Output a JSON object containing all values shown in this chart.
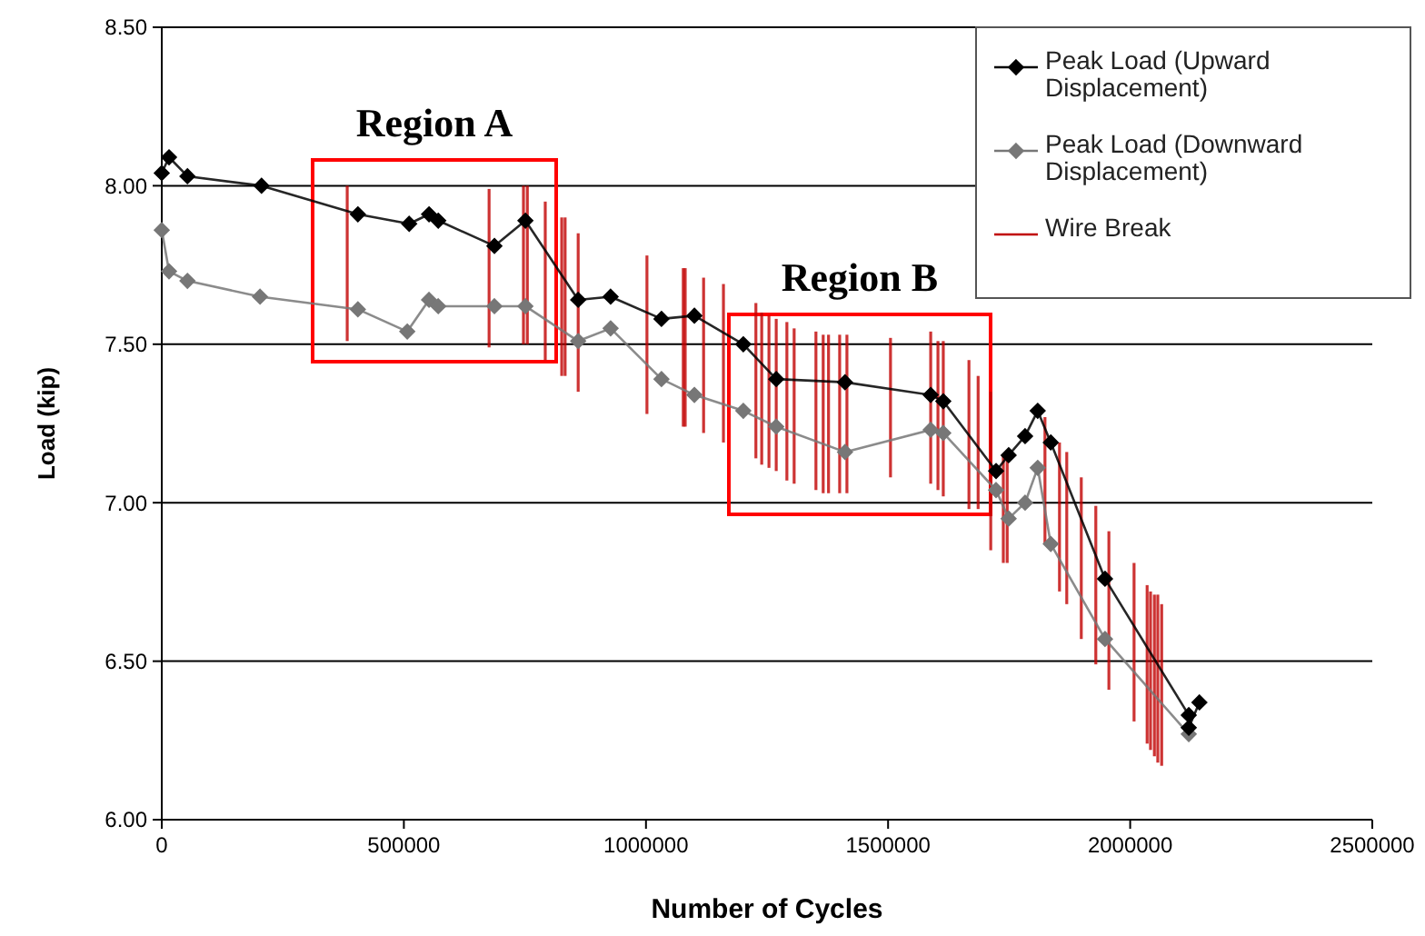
{
  "chart_data": {
    "type": "line",
    "xlabel": "Number of Cycles",
    "ylabel": "Load (kip)",
    "xlim": [
      0,
      2500000
    ],
    "xticks": [
      0,
      500000,
      1000000,
      1500000,
      2000000,
      2500000
    ],
    "ylim": [
      6,
      8.5
    ],
    "yticks": [
      {
        "value": 6,
        "label": "6.00"
      },
      {
        "value": 6.5,
        "label": "6.50"
      },
      {
        "value": 7,
        "label": "7.00"
      },
      {
        "value": 7.5,
        "label": "7.50"
      },
      {
        "value": 8,
        "label": "8.00"
      },
      {
        "value": 8.5,
        "label": "8.50"
      }
    ],
    "grid": "y",
    "legend": "top right",
    "line_style": "solid",
    "annotations": [
      "Region A",
      "Region B"
    ],
    "series": [
      {
        "name": "Peak Load (Upward Displacement)",
        "color": "#000000",
        "marker": "diamond",
        "x": [
          0,
          15000,
          53000,
          206000,
          405000,
          511000,
          552000,
          571000,
          687000,
          751000,
          860000,
          927000,
          1032000,
          1100000,
          1201000,
          1269000,
          1411000,
          1588000,
          1614000,
          1723000,
          1749000,
          1783000,
          1809000,
          1836000,
          1948000,
          2121000,
          2121000,
          2143000
        ],
        "values": [
          8.04,
          8.09,
          8.03,
          8.0,
          7.91,
          7.88,
          7.91,
          7.89,
          7.81,
          7.89,
          7.64,
          7.65,
          7.58,
          7.59,
          7.5,
          7.39,
          7.38,
          7.34,
          7.32,
          7.1,
          7.15,
          7.21,
          7.29,
          7.19,
          6.76,
          6.33,
          6.29,
          6.37
        ]
      },
      {
        "name": "Peak Load (Downward Displacement)",
        "color": "#777777",
        "marker": "diamond",
        "x": [
          0,
          15000,
          53000,
          203000,
          405000,
          507000,
          552000,
          571000,
          687000,
          751000,
          860000,
          927000,
          1032000,
          1100000,
          1201000,
          1269000,
          1411000,
          1588000,
          1614000,
          1723000,
          1749000,
          1783000,
          1809000,
          1836000,
          1948000,
          2121000
        ],
        "values": [
          7.86,
          7.73,
          7.7,
          7.65,
          7.61,
          7.54,
          7.64,
          7.62,
          7.62,
          7.62,
          7.51,
          7.55,
          7.39,
          7.34,
          7.29,
          7.24,
          7.16,
          7.23,
          7.22,
          7.04,
          6.95,
          7.0,
          7.11,
          6.87,
          6.57,
          6.27
        ]
      },
      {
        "name": "Wire Break",
        "type": "bar",
        "color": "#c00000",
        "x": [
          383000,
          676000,
          747000,
          755000,
          792000,
          826000,
          833000,
          860000,
          1002000,
          1077000,
          1081000,
          1119000,
          1160000,
          1227000,
          1239000,
          1254000,
          1269000,
          1291000,
          1306000,
          1351000,
          1366000,
          1377000,
          1400000,
          1415000,
          1505000,
          1588000,
          1603000,
          1614000,
          1667000,
          1686000,
          1712000,
          1738000,
          1746000,
          1824000,
          1854000,
          1869000,
          1899000,
          1929000,
          1956000,
          2008000,
          2035000,
          2042000,
          2050000,
          2057000,
          2065000
        ],
        "base": [
          7.51,
          7.49,
          7.5,
          7.5,
          7.45,
          7.4,
          7.4,
          7.35,
          7.28,
          7.24,
          7.24,
          7.22,
          7.19,
          7.14,
          7.12,
          7.11,
          7.1,
          7.07,
          7.06,
          7.04,
          7.03,
          7.03,
          7.03,
          7.03,
          7.08,
          7.06,
          7.04,
          7.02,
          6.98,
          6.98,
          6.85,
          6.81,
          6.81,
          6.87,
          6.72,
          6.68,
          6.57,
          6.49,
          6.41,
          6.31,
          6.24,
          6.22,
          6.2,
          6.18,
          6.17
        ],
        "values": [
          0.49,
          0.5,
          0.5,
          0.5,
          0.5,
          0.5,
          0.5,
          0.5,
          0.5,
          0.5,
          0.5,
          0.49,
          0.5,
          0.49,
          0.48,
          0.48,
          0.48,
          0.5,
          0.49,
          0.5,
          0.5,
          0.5,
          0.5,
          0.5,
          0.44,
          0.48,
          0.47,
          0.49,
          0.47,
          0.42,
          0.5,
          0.34,
          0.34,
          0.4,
          0.47,
          0.48,
          0.51,
          0.5,
          0.5,
          0.5,
          0.5,
          0.5,
          0.51,
          0.53,
          0.51
        ]
      }
    ]
  }
}
